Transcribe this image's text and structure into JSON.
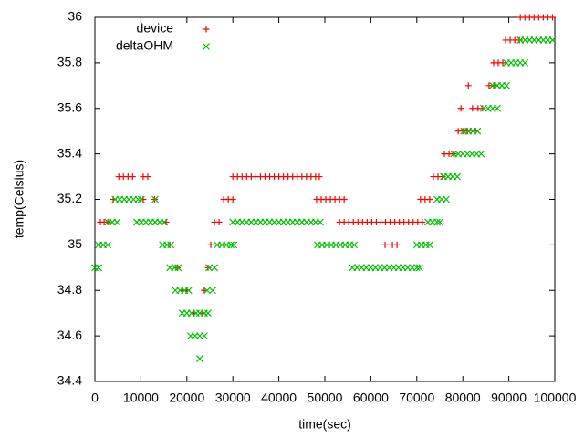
{
  "chart_data": {
    "type": "scatter",
    "xlabel": "time(sec)",
    "ylabel": "temp(Celsius)",
    "xlim": [
      0,
      100000
    ],
    "xticks": [
      0,
      10000,
      20000,
      30000,
      40000,
      50000,
      60000,
      70000,
      80000,
      90000,
      100000
    ],
    "ylim": [
      34.4,
      36
    ],
    "yticks": [
      34.4,
      34.6,
      34.8,
      35,
      35.2,
      35.4,
      35.6,
      35.8,
      36
    ],
    "grid": false,
    "legend": "top-left",
    "series": [
      {
        "name": "device",
        "color": "#ff0000",
        "marker": "plus",
        "x": [
          1200,
          2000,
          2800,
          4000,
          5200,
          6200,
          7200,
          8200,
          10500,
          11500,
          10500,
          13000,
          15500,
          16300,
          18000,
          19000,
          20000,
          21500,
          23400,
          23800,
          24600,
          25200,
          26000,
          27000,
          28000,
          29000,
          30000,
          30000,
          31000,
          32000,
          33000,
          34000,
          35000,
          36000,
          37000,
          38000,
          39000,
          40000,
          41000,
          42000,
          43000,
          44000,
          45000,
          46000,
          47000,
          48000,
          48800,
          48200,
          49200,
          50200,
          51200,
          52200,
          53200,
          54200,
          53200,
          54200,
          55200,
          56200,
          57200,
          58200,
          59200,
          60200,
          61200,
          62200,
          63200,
          64200,
          65200,
          66200,
          67200,
          68200,
          69200,
          70200,
          71200,
          63100,
          64700,
          65700,
          70800,
          71800,
          72800,
          73600,
          74600,
          75600,
          76000,
          77000,
          78000,
          79000,
          80000,
          81000,
          82500,
          79600,
          82100,
          83300,
          84300,
          81200,
          85700,
          86700,
          86700,
          87700,
          88700,
          89300,
          90300,
          91300,
          92300,
          92500,
          93500,
          94500,
          95500,
          96500,
          97500,
          98500,
          99500
        ],
        "values": [
          35.1,
          35.1,
          35.1,
          35.2,
          35.3,
          35.3,
          35.3,
          35.3,
          35.3,
          35.3,
          35.2,
          35.2,
          35.1,
          35,
          34.9,
          34.8,
          34.8,
          34.7,
          34.7,
          34.8,
          34.9,
          35,
          35.1,
          35.1,
          35.2,
          35.2,
          35.2,
          35.3,
          35.3,
          35.3,
          35.3,
          35.3,
          35.3,
          35.3,
          35.3,
          35.3,
          35.3,
          35.3,
          35.3,
          35.3,
          35.3,
          35.3,
          35.3,
          35.3,
          35.3,
          35.3,
          35.3,
          35.2,
          35.2,
          35.2,
          35.2,
          35.2,
          35.2,
          35.2,
          35.1,
          35.1,
          35.1,
          35.1,
          35.1,
          35.1,
          35.1,
          35.1,
          35.1,
          35.1,
          35.1,
          35.1,
          35.1,
          35.1,
          35.1,
          35.1,
          35.1,
          35.1,
          35.1,
          35,
          35,
          35,
          35.2,
          35.2,
          35.2,
          35.3,
          35.3,
          35.3,
          35.4,
          35.4,
          35.4,
          35.5,
          35.5,
          35.5,
          35.5,
          35.6,
          35.6,
          35.6,
          35.6,
          35.7,
          35.7,
          35.7,
          35.8,
          35.8,
          35.8,
          35.9,
          35.9,
          35.9,
          35.9,
          36,
          36,
          36,
          36,
          36,
          36,
          36,
          36
        ]
      },
      {
        "name": "deltaOHM",
        "color": "#00c000",
        "marker": "cross",
        "x": [
          0,
          800,
          800,
          1800,
          2800,
          2800,
          3800,
          4800,
          4400,
          5400,
          6400,
          7400,
          8400,
          9400,
          10100,
          13100,
          9100,
          10100,
          11100,
          12100,
          13100,
          14100,
          15100,
          14700,
          15700,
          16500,
          16300,
          17300,
          18100,
          17500,
          18500,
          19500,
          20400,
          19000,
          20000,
          21000,
          22000,
          22800,
          23800,
          24600,
          20800,
          21800,
          22800,
          23800,
          22800,
          24400,
          25600,
          24800,
          26000,
          26600,
          27600,
          28600,
          29600,
          30200,
          30000,
          31000,
          32000,
          33000,
          34000,
          35000,
          36000,
          37000,
          38000,
          39000,
          40000,
          41000,
          42000,
          43000,
          44000,
          45000,
          46000,
          47000,
          48000,
          49000,
          48400,
          49400,
          50400,
          51400,
          52400,
          53400,
          54400,
          55400,
          56400,
          56000,
          57000,
          58000,
          59000,
          60000,
          61000,
          62000,
          63000,
          64000,
          65000,
          66000,
          67000,
          68000,
          69000,
          70000,
          70600,
          70000,
          71000,
          72000,
          72800,
          72400,
          73400,
          74400,
          75000,
          74400,
          75400,
          76400,
          75800,
          76800,
          77800,
          78800,
          78000,
          79000,
          80000,
          81000,
          82000,
          83000,
          84000,
          80200,
          81200,
          82200,
          83200,
          84500,
          85500,
          86500,
          87500,
          86500,
          87500,
          88500,
          89500,
          89500,
          90500,
          91500,
          92500,
          93500,
          92500,
          93500,
          94500,
          95500,
          96500,
          97500,
          98500,
          99500
        ],
        "values": [
          34.9,
          34.9,
          35,
          35,
          35,
          35.1,
          35.1,
          35.1,
          35.2,
          35.2,
          35.2,
          35.2,
          35.2,
          35.2,
          35.2,
          35.2,
          35.1,
          35.1,
          35.1,
          35.1,
          35.1,
          35.1,
          35.1,
          35,
          35,
          35,
          34.9,
          34.9,
          34.9,
          34.8,
          34.8,
          34.8,
          34.8,
          34.7,
          34.7,
          34.7,
          34.7,
          34.7,
          34.7,
          34.7,
          34.6,
          34.6,
          34.6,
          34.6,
          34.5,
          34.8,
          34.8,
          34.9,
          34.9,
          35,
          35,
          35,
          35,
          35,
          35.1,
          35.1,
          35.1,
          35.1,
          35.1,
          35.1,
          35.1,
          35.1,
          35.1,
          35.1,
          35.1,
          35.1,
          35.1,
          35.1,
          35.1,
          35.1,
          35.1,
          35.1,
          35.1,
          35.1,
          35,
          35,
          35,
          35,
          35,
          35,
          35,
          35,
          35,
          34.9,
          34.9,
          34.9,
          34.9,
          34.9,
          34.9,
          34.9,
          34.9,
          34.9,
          34.9,
          34.9,
          34.9,
          34.9,
          34.9,
          34.9,
          34.9,
          35,
          35,
          35,
          35,
          35.1,
          35.1,
          35.1,
          35.1,
          35.2,
          35.2,
          35.2,
          35.3,
          35.3,
          35.3,
          35.3,
          35.4,
          35.4,
          35.4,
          35.4,
          35.4,
          35.4,
          35.4,
          35.5,
          35.5,
          35.5,
          35.5,
          35.6,
          35.6,
          35.6,
          35.6,
          35.7,
          35.7,
          35.7,
          35.7,
          35.8,
          35.8,
          35.8,
          35.8,
          35.8,
          35.9,
          35.9,
          35.9,
          35.9,
          35.9,
          35.9,
          35.9,
          35.9
        ]
      }
    ]
  }
}
